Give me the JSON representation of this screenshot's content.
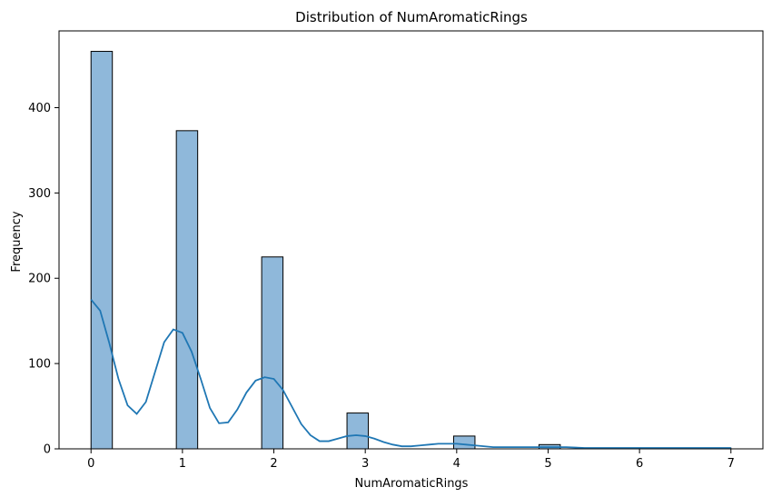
{
  "chart_data": {
    "type": "bar",
    "title": "Distribution of NumAromaticRings",
    "xlabel": "NumAromaticRings",
    "ylabel": "Frequency",
    "xlim": [
      -0.35,
      7.35
    ],
    "ylim": [
      0,
      490
    ],
    "x_ticks": [
      0,
      1,
      2,
      3,
      4,
      5,
      6,
      7
    ],
    "y_ticks": [
      0,
      100,
      200,
      300,
      400
    ],
    "grid": false,
    "bin_width": 0.2333,
    "bins": [
      {
        "start": 0.0,
        "end": 0.2333,
        "count": 466
      },
      {
        "start": 0.9333,
        "end": 1.1667,
        "count": 373
      },
      {
        "start": 1.8667,
        "end": 2.1,
        "count": 225
      },
      {
        "start": 2.8,
        "end": 3.0333,
        "count": 42
      },
      {
        "start": 3.9667,
        "end": 4.2,
        "count": 15
      },
      {
        "start": 4.9,
        "end": 5.1333,
        "count": 5
      },
      {
        "start": 6.0667,
        "end": 6.3,
        "count": 1
      },
      {
        "start": 6.7667,
        "end": 7.0,
        "count": 1
      }
    ],
    "kde": {
      "x": [
        0.0,
        0.1,
        0.2,
        0.3,
        0.4,
        0.5,
        0.6,
        0.7,
        0.8,
        0.9,
        1.0,
        1.1,
        1.2,
        1.3,
        1.4,
        1.5,
        1.6,
        1.7,
        1.8,
        1.9,
        2.0,
        2.1,
        2.2,
        2.3,
        2.4,
        2.5,
        2.6,
        2.7,
        2.8,
        2.9,
        3.0,
        3.1,
        3.2,
        3.3,
        3.4,
        3.5,
        3.6,
        3.7,
        3.8,
        3.9,
        4.0,
        4.1,
        4.2,
        4.4,
        4.6,
        4.8,
        5.0,
        5.2,
        5.4,
        5.6,
        5.8,
        6.0,
        6.2,
        6.4,
        6.6,
        6.8,
        7.0
      ],
      "y": [
        175,
        162,
        124,
        82,
        51,
        41,
        55,
        90,
        125,
        140,
        136,
        114,
        82,
        48,
        30,
        31,
        46,
        66,
        80,
        84,
        82,
        69,
        49,
        29,
        16,
        9,
        9,
        12,
        15,
        16,
        15,
        12,
        8,
        5,
        3,
        3,
        4,
        5,
        6,
        6,
        6,
        5,
        4,
        2,
        2,
        2,
        2,
        2,
        1,
        1,
        1,
        1,
        1,
        1,
        1,
        1,
        1
      ]
    },
    "colors": {
      "bar_fill": "#8fb8da",
      "bar_edge": "#000000",
      "kde_line": "#1f77b4"
    }
  }
}
